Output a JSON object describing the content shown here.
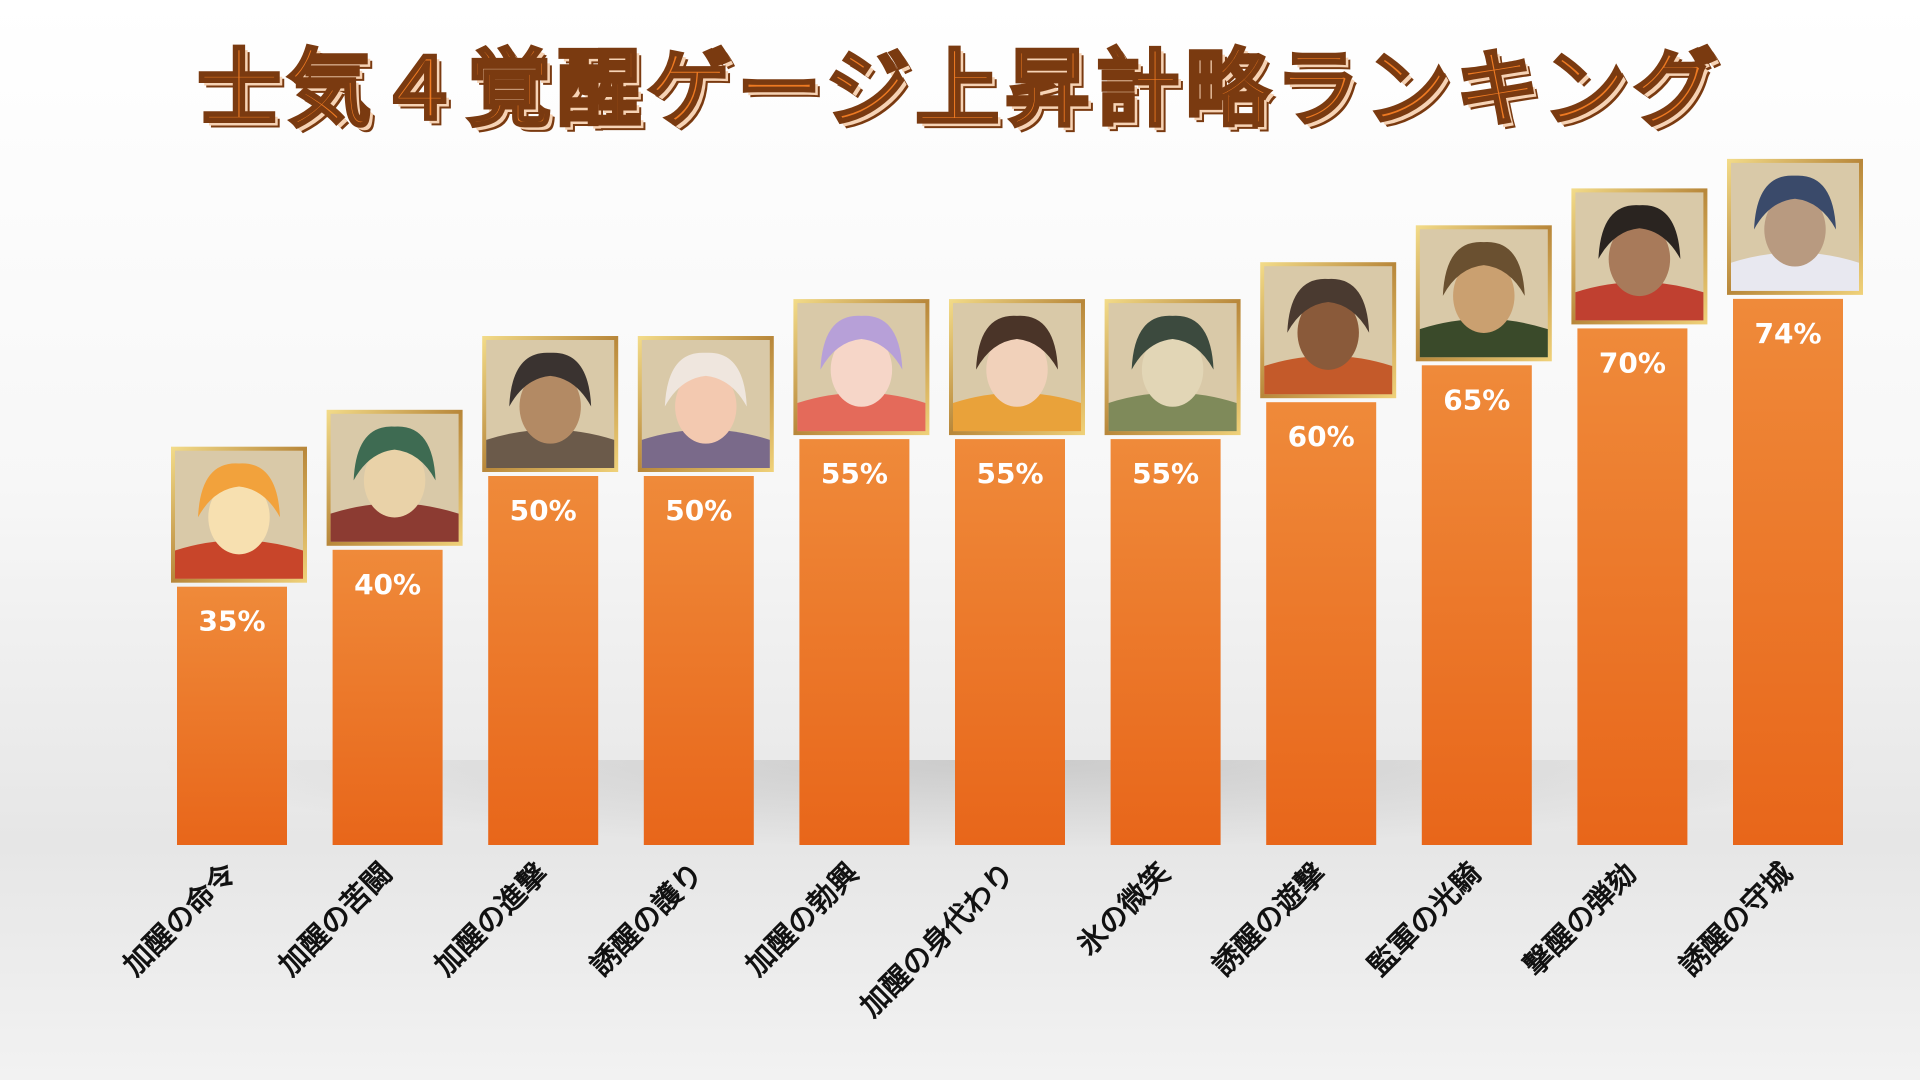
{
  "title": "士気４覚醒ゲージ上昇計略ランキング",
  "colors": {
    "bar_top": "#ef8a3a",
    "bar_bottom": "#e8661a",
    "title_fill": "#ee7a22",
    "title_outline": "#7a3a10",
    "portrait_frame": "#c9a44a"
  },
  "chart_data": {
    "type": "bar",
    "title": "士気４覚醒ゲージ上昇計略ランキング",
    "categories": [
      "加醒の命令",
      "加醒の苦闘",
      "加醒の進撃",
      "誘醒の護り",
      "加醒の勃興",
      "加醒の身代わり",
      "氷の微笑",
      "誘醒の遊撃",
      "監軍の光騎",
      "撃醒の弾劾",
      "誘醒の守城"
    ],
    "values": [
      35,
      40,
      50,
      50,
      55,
      55,
      55,
      60,
      65,
      70,
      74
    ],
    "value_labels": [
      "35%",
      "40%",
      "50%",
      "50%",
      "55%",
      "55%",
      "55%",
      "60%",
      "65%",
      "70%",
      "74%"
    ],
    "unit": "%",
    "ylim": [
      0,
      100
    ],
    "grid": false,
    "legend": "none",
    "bar_decoration": "character portrait above each bar"
  }
}
